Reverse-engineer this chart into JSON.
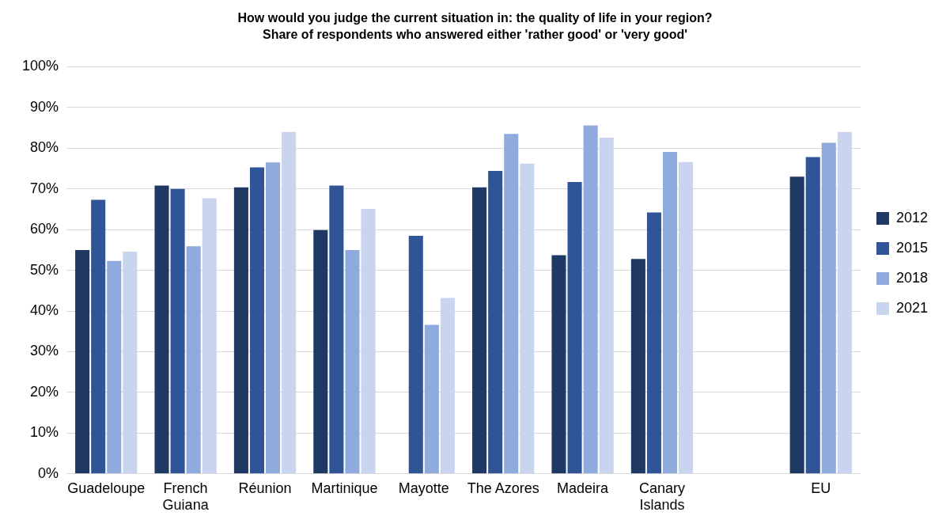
{
  "chart_data": {
    "type": "bar",
    "title": "How would you judge the current situation in: the quality of life in your region?",
    "subtitle": "Share of respondents who answered either 'rather good' or 'very good'",
    "categories": [
      "Guadeloupe",
      "French Guiana",
      "Réunion",
      "Martinique",
      "Mayotte",
      "The Azores",
      "Madeira",
      "Canary Islands",
      null,
      "EU"
    ],
    "series": [
      {
        "name": "2012",
        "color": "#203864",
        "values": [
          55.0,
          70.8,
          70.4,
          59.9,
          null,
          70.4,
          53.7,
          52.8,
          null,
          73.0
        ]
      },
      {
        "name": "2015",
        "color": "#2f5597",
        "values": [
          67.3,
          70.0,
          75.3,
          70.8,
          58.5,
          74.4,
          71.7,
          64.2,
          null,
          77.8
        ]
      },
      {
        "name": "2018",
        "color": "#8faadc",
        "values": [
          52.3,
          55.9,
          76.5,
          55.0,
          36.6,
          83.5,
          85.6,
          79.1,
          null,
          81.3
        ]
      },
      {
        "name": "2021",
        "color": "#c9d5ef",
        "values": [
          54.6,
          67.7,
          84.0,
          65.1,
          43.2,
          76.2,
          82.6,
          76.6,
          null,
          84.0
        ]
      }
    ],
    "ylim": [
      0,
      100
    ],
    "yticks": [
      {
        "value": 0,
        "label": "0%"
      },
      {
        "value": 10,
        "label": "10%"
      },
      {
        "value": 20,
        "label": "20%"
      },
      {
        "value": 30,
        "label": "30%"
      },
      {
        "value": 40,
        "label": "40%"
      },
      {
        "value": 50,
        "label": "50%"
      },
      {
        "value": 60,
        "label": "60%"
      },
      {
        "value": 70,
        "label": "70%"
      },
      {
        "value": 80,
        "label": "80%"
      },
      {
        "value": 90,
        "label": "90%"
      },
      {
        "value": 100,
        "label": "100%"
      }
    ],
    "grid": "y",
    "legend": "right"
  }
}
